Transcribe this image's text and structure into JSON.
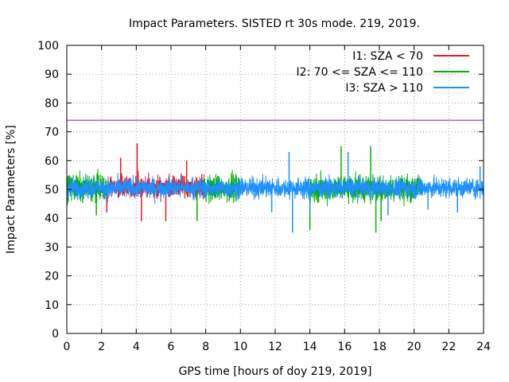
{
  "chart_data": {
    "type": "line",
    "title": "Impact Parameters. SISTED rt 30s mode. 219, 2019.",
    "xlabel": "GPS time [hours of doy 219, 2019]",
    "ylabel": "Impact Parameters [%]",
    "xlim": [
      0,
      24
    ],
    "ylim": [
      0,
      100
    ],
    "xticks": [
      0,
      2,
      4,
      6,
      8,
      10,
      12,
      14,
      16,
      18,
      20,
      22,
      24
    ],
    "yticks": [
      0,
      10,
      20,
      30,
      40,
      50,
      60,
      70,
      80,
      90,
      100
    ],
    "grid": true,
    "legend_position": "top-right",
    "threshold": {
      "value": 74,
      "color": "#9400d3"
    },
    "series": [
      {
        "name": "I1: SZA < 70",
        "color": "#e41a1c",
        "segments": [
          [
            2.3,
            7.9
          ]
        ],
        "center": 51,
        "spread": 5,
        "spikes": [
          [
            4.05,
            66
          ],
          [
            4.3,
            39
          ],
          [
            3.1,
            61
          ],
          [
            5.7,
            39
          ],
          [
            2.3,
            42
          ],
          [
            6.9,
            60
          ]
        ]
      },
      {
        "name": "I2: 70 <= SZA <= 110",
        "color": "#00b000",
        "segments": [
          [
            0.0,
            2.3
          ],
          [
            7.9,
            10.0
          ],
          [
            13.8,
            20.5
          ]
        ],
        "center": 50.5,
        "spread": 6,
        "spikes": [
          [
            17.8,
            35
          ],
          [
            15.8,
            65
          ],
          [
            17.5,
            65
          ],
          [
            18.1,
            39
          ],
          [
            7.5,
            39
          ],
          [
            14.0,
            36
          ],
          [
            1.7,
            41
          ]
        ]
      },
      {
        "name": "I3: SZA > 110",
        "color": "#1e90ff",
        "segments": [
          [
            0.0,
            24.0
          ]
        ],
        "center": 50.5,
        "spread": 4.5,
        "spikes": [
          [
            13.0,
            35
          ],
          [
            12.8,
            63
          ],
          [
            16.2,
            63
          ],
          [
            14.0,
            42
          ],
          [
            18.5,
            41
          ],
          [
            20.8,
            43
          ],
          [
            11.8,
            42
          ],
          [
            22.5,
            42
          ],
          [
            23.8,
            58
          ]
        ]
      }
    ]
  }
}
